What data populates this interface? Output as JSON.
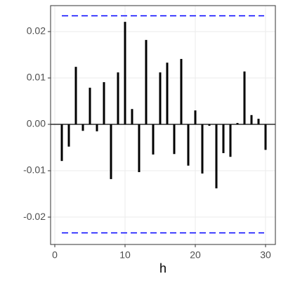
{
  "chart_data": {
    "type": "bar",
    "x_label": "h",
    "x": [
      1,
      2,
      3,
      4,
      5,
      6,
      7,
      8,
      9,
      10,
      11,
      12,
      13,
      14,
      15,
      16,
      17,
      18,
      19,
      20,
      21,
      22,
      23,
      24,
      25,
      26,
      27,
      28,
      29,
      30
    ],
    "values": [
      -0.0079,
      -0.0048,
      0.0124,
      -0.0014,
      0.0079,
      -0.0015,
      0.0091,
      -0.0118,
      0.0112,
      0.0221,
      0.0033,
      -0.0103,
      0.0182,
      -0.0065,
      0.0112,
      0.0133,
      -0.0064,
      0.0141,
      -0.0089,
      0.003,
      -0.0106,
      -0.0003,
      -0.0138,
      -0.0062,
      -0.007,
      0.0003,
      0.0114,
      0.002,
      0.0012,
      -0.0055
    ],
    "color": "#000000",
    "bounds": [
      0.0234,
      -0.0234
    ],
    "bounds_color": "#0000ff",
    "xlim": [
      -0.6,
      31.4
    ],
    "xticks": [
      0,
      10,
      20,
      30
    ],
    "ylim": [
      -0.0259,
      0.0256
    ],
    "yticks": [
      0.02,
      0.01,
      {
        "value": 0,
        "label": "0.00"
      },
      -0.01,
      -0.02
    ],
    "grid": true
  }
}
